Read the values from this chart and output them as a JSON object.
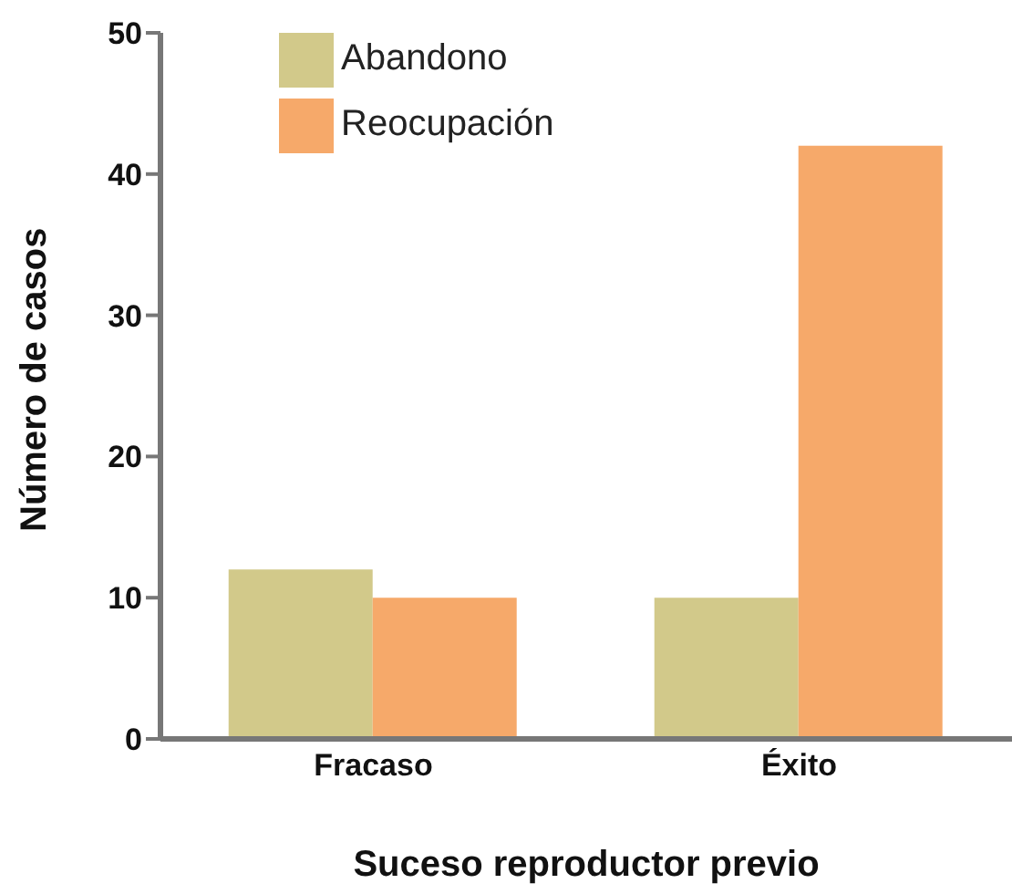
{
  "chart_data": {
    "type": "bar",
    "xlabel": "Suceso reproductor previo",
    "ylabel": "Número de casos",
    "categories": [
      "Fracaso",
      "Éxito"
    ],
    "series": [
      {
        "name": "Abandono",
        "color": "#d2c98a",
        "values": [
          12,
          10
        ]
      },
      {
        "name": "Reocupación",
        "color": "#f6a96a",
        "values": [
          10,
          42
        ]
      }
    ],
    "ylim": [
      0,
      50
    ],
    "yticks": [
      0,
      10,
      20,
      30,
      40,
      50
    ],
    "grid": false,
    "legend": "top left"
  }
}
